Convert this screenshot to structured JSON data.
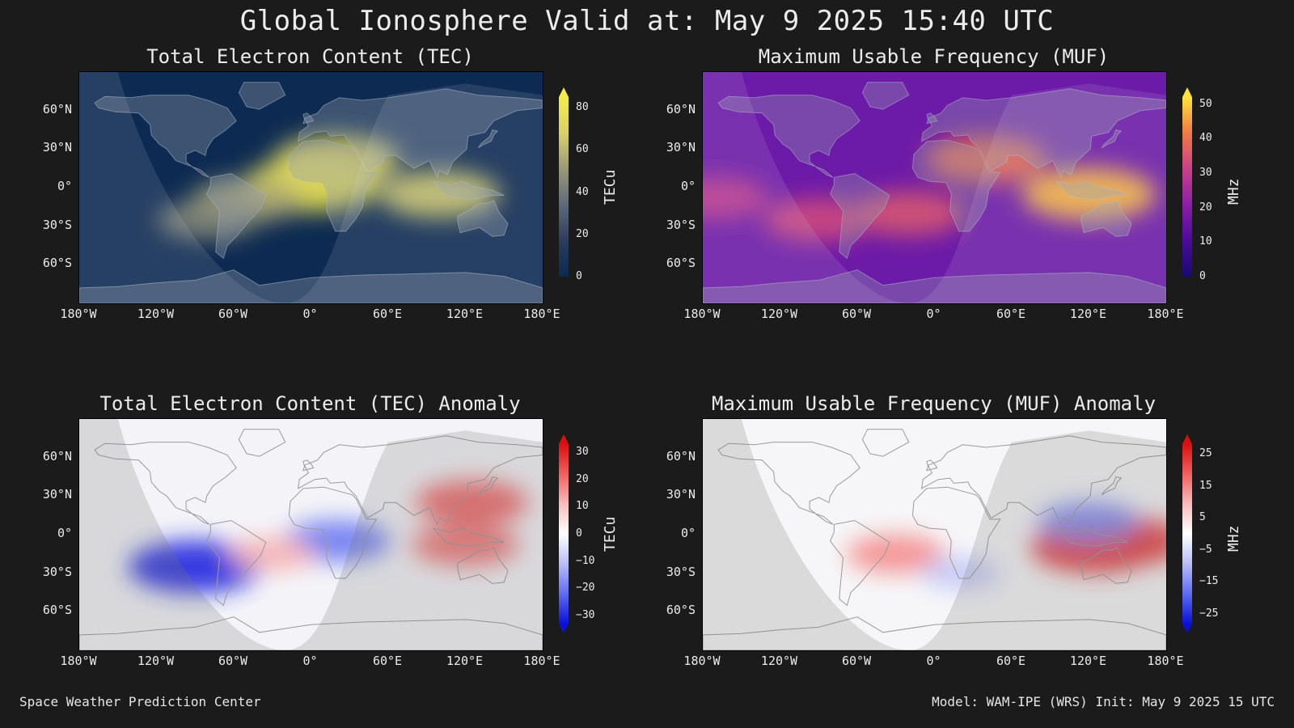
{
  "page_title": "Global Ionosphere Valid at: May 9 2025 15:40 UTC",
  "footer": {
    "left": "Space Weather Prediction Center",
    "right": "Model: WAM-IPE (WRS) Init: May 9 2025 15 UTC"
  },
  "chart_data": [
    {
      "type": "heatmap",
      "title": "Total Electron Content (TEC)",
      "colorbar_label": "TECu",
      "colorbar_ticks": [
        "0",
        "20",
        "40",
        "60",
        "80"
      ],
      "colorbar_range": [
        0,
        85
      ],
      "colormap": [
        "#0b2a52",
        "#2c3c5c",
        "#5e6a7a",
        "#9a9878",
        "#d9d06a",
        "#f4ec48"
      ],
      "x_ticks": [
        "180°W",
        "120°W",
        "60°W",
        "0°",
        "60°E",
        "120°E",
        "180°E"
      ],
      "y_ticks": [
        "60°N",
        "30°N",
        "0°",
        "30°S",
        "60°S"
      ],
      "xlim": [
        -180,
        180
      ],
      "ylim": [
        -90,
        90
      ],
      "background_color": "#0d2a52",
      "hotspots": [
        {
          "lon": 0,
          "lat": 2,
          "value": 80
        },
        {
          "lon": 20,
          "lat": 22,
          "value": 70
        },
        {
          "lon": 100,
          "lat": -5,
          "value": 65
        },
        {
          "lon": -50,
          "lat": -10,
          "value": 55
        },
        {
          "lon": -80,
          "lat": -25,
          "value": 45
        }
      ]
    },
    {
      "type": "heatmap",
      "title": "Maximum Usable Frequency (MUF)",
      "colorbar_label": "MHz",
      "colorbar_ticks": [
        "0",
        "10",
        "20",
        "30",
        "40",
        "50"
      ],
      "colorbar_range": [
        0,
        52
      ],
      "colormap": [
        "#1a0a70",
        "#4a0b9a",
        "#8c1fa6",
        "#c8418a",
        "#ef7a45",
        "#fde23c"
      ],
      "x_ticks": [
        "180°W",
        "120°W",
        "60°W",
        "0°",
        "60°E",
        "120°E",
        "180°E"
      ],
      "y_ticks": [
        "60°N",
        "30°N",
        "0°",
        "30°S",
        "60°S"
      ],
      "xlim": [
        -180,
        180
      ],
      "ylim": [
        -90,
        90
      ],
      "background_color": "#6c1aa8",
      "hotspots": [
        {
          "lon": 120,
          "lat": -5,
          "value": 48
        },
        {
          "lon": 40,
          "lat": 22,
          "value": 40
        },
        {
          "lon": -20,
          "lat": -20,
          "value": 35
        },
        {
          "lon": -90,
          "lat": -25,
          "value": 33
        },
        {
          "lon": -170,
          "lat": -8,
          "value": 30
        }
      ]
    },
    {
      "type": "heatmap",
      "title": "Total Electron Content (TEC) Anomaly",
      "colorbar_label": "TECu",
      "colorbar_ticks": [
        "30",
        "20",
        "10",
        "0",
        "−10",
        "−20",
        "−30"
      ],
      "colorbar_range": [
        -33,
        33
      ],
      "colormap": [
        "#0a10d8",
        "#5f6cf0",
        "#b8bdf6",
        "#ffffff",
        "#f8bcbc",
        "#f06060",
        "#d81010"
      ],
      "x_ticks": [
        "180°W",
        "120°W",
        "60°W",
        "0°",
        "60°E",
        "120°E",
        "180°E"
      ],
      "y_ticks": [
        "60°N",
        "30°N",
        "0°",
        "30°S",
        "60°S"
      ],
      "xlim": [
        -180,
        180
      ],
      "ylim": [
        -90,
        90
      ],
      "background_color": "#f4f4f8",
      "hotspots": [
        {
          "lon": -90,
          "lat": -25,
          "value": -30
        },
        {
          "lon": 20,
          "lat": -5,
          "value": -20
        },
        {
          "lon": 125,
          "lat": 25,
          "value": 22
        },
        {
          "lon": 120,
          "lat": -8,
          "value": 20
        },
        {
          "lon": -30,
          "lat": -15,
          "value": 12
        }
      ]
    },
    {
      "type": "heatmap",
      "title": "Maximum Usable Frequency (MUF) Anomaly",
      "colorbar_label": "MHz",
      "colorbar_ticks": [
        "25",
        "15",
        "5",
        "−5",
        "−15",
        "−25"
      ],
      "colorbar_range": [
        -28,
        28
      ],
      "colormap": [
        "#0a10d8",
        "#5f6cf0",
        "#b8bdf6",
        "#ffffff",
        "#f8bcbc",
        "#f06060",
        "#d81010"
      ],
      "x_ticks": [
        "180°W",
        "120°W",
        "60°W",
        "0°",
        "60°E",
        "120°E",
        "180°E"
      ],
      "y_ticks": [
        "60°N",
        "30°N",
        "0°",
        "30°S",
        "60°S"
      ],
      "xlim": [
        -180,
        180
      ],
      "ylim": [
        -90,
        90
      ],
      "background_color": "#f6f6f8",
      "hotspots": [
        {
          "lon": 125,
          "lat": -10,
          "value": 24
        },
        {
          "lon": 150,
          "lat": -5,
          "value": 22
        },
        {
          "lon": -30,
          "lat": -15,
          "value": 14
        },
        {
          "lon": 120,
          "lat": 10,
          "value": -15
        },
        {
          "lon": 20,
          "lat": -30,
          "value": -8
        }
      ]
    }
  ]
}
